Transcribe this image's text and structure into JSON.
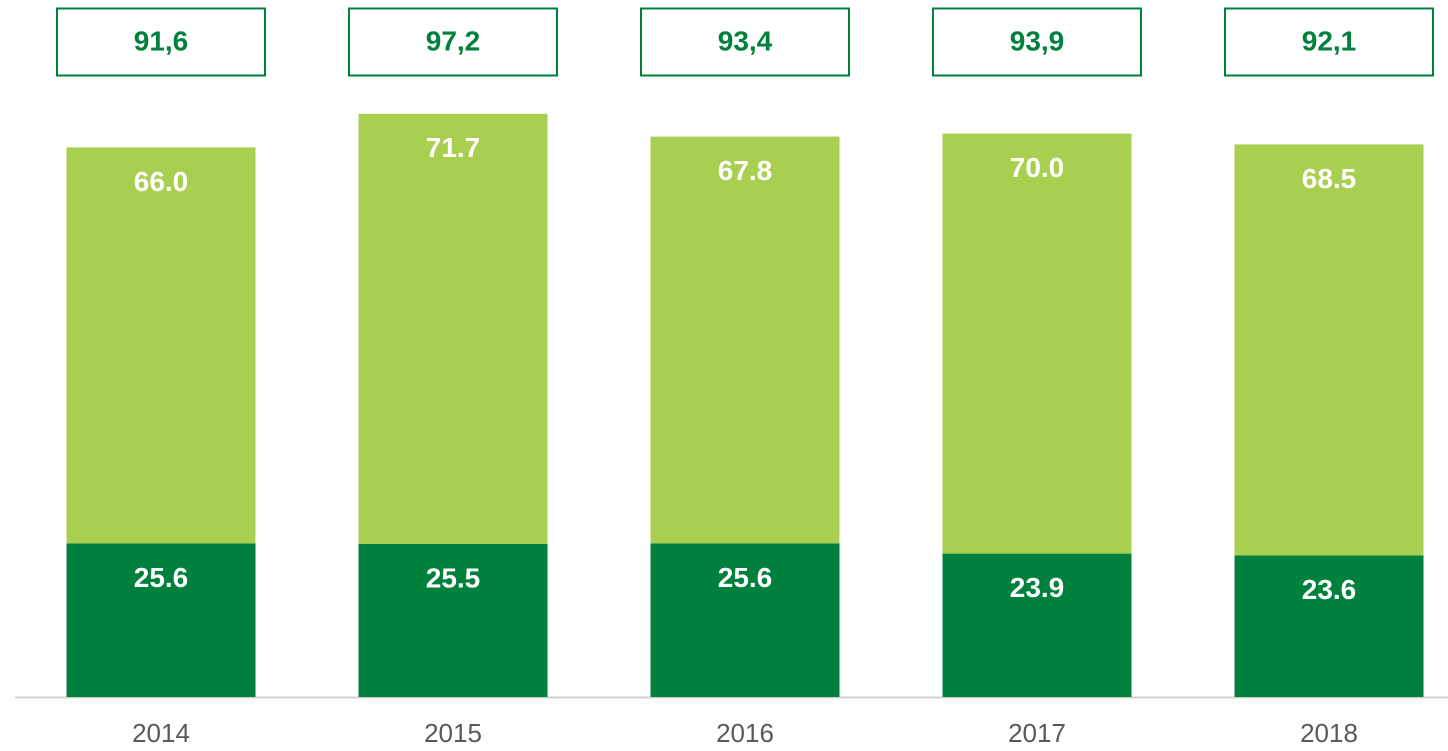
{
  "chart_data": {
    "type": "stacked_bar",
    "categories": [
      "2014",
      "2015",
      "2016",
      "2017",
      "2018"
    ],
    "series": [
      {
        "color": "#00803d",
        "values": [
          25.6,
          25.5,
          25.6,
          23.9,
          23.6
        ]
      },
      {
        "color": "#a8cf4f",
        "values": [
          66.0,
          71.7,
          67.8,
          70.0,
          68.5
        ],
        "value_labels": [
          "66.0",
          "71.7",
          "67.8",
          "70.0",
          "68.5"
        ]
      }
    ],
    "totals": {
      "color": "#00803d",
      "values": [
        91.6,
        97.2,
        93.4,
        93.9,
        92.1
      ],
      "value_labels": [
        "91,6",
        "97,2",
        "93,4",
        "93,9",
        "92,1"
      ]
    },
    "ylim": [
      0,
      100
    ]
  }
}
